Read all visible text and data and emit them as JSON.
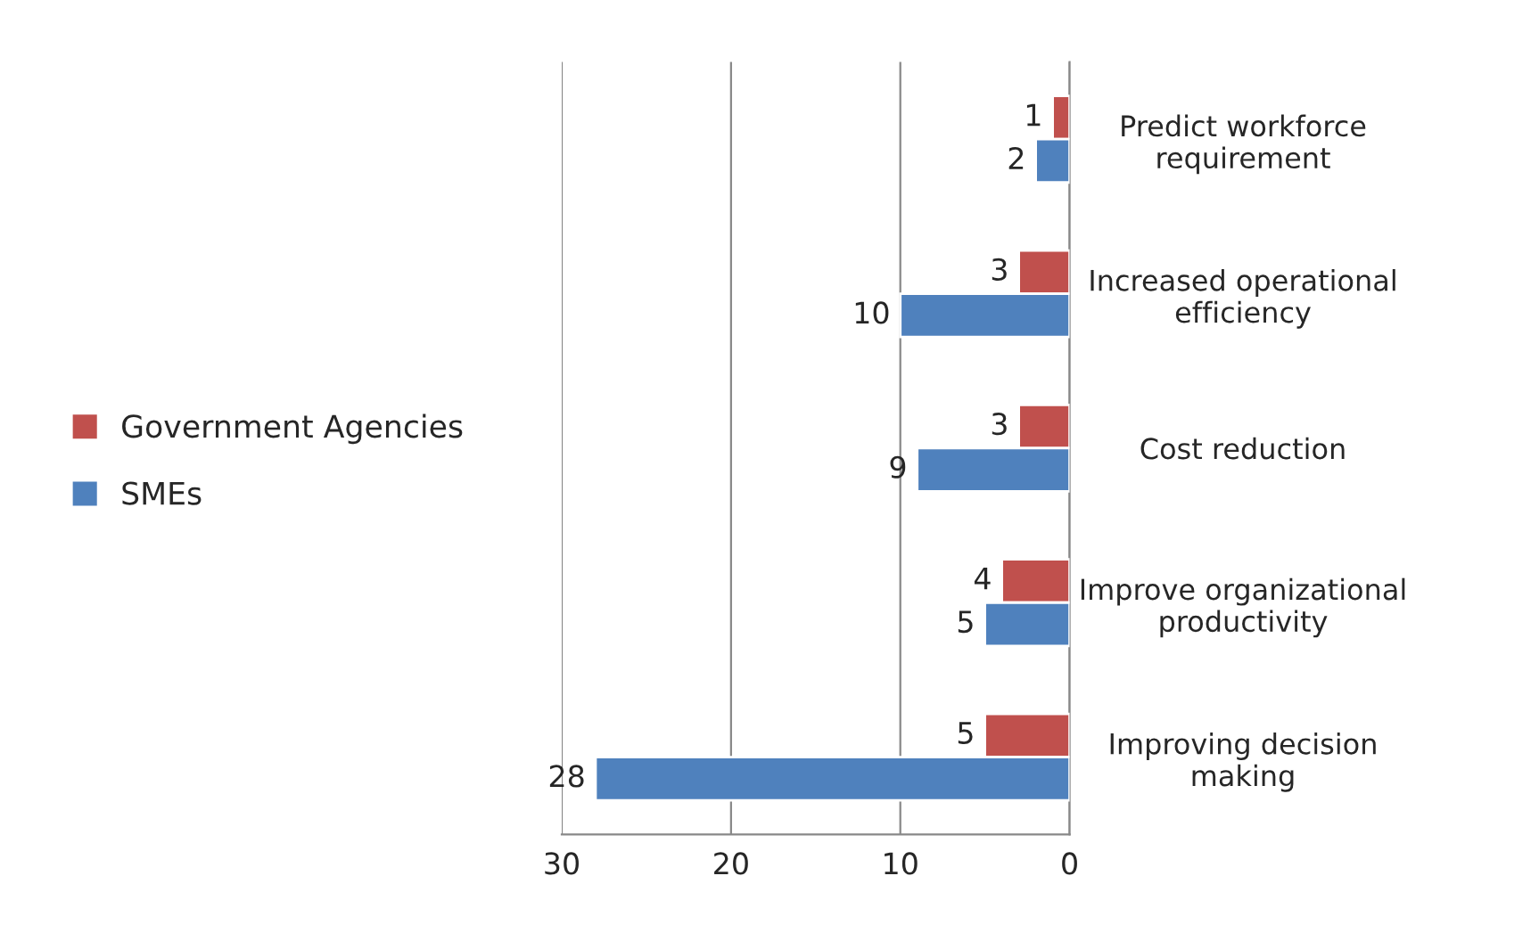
{
  "chart_data": {
    "type": "bar",
    "orientation": "horizontal",
    "categories": [
      "Predict workforce\nrequirement",
      "Increased operational\nefficiency",
      "Cost reduction",
      "Improve organizational\nproductivity",
      "Improving decision\nmaking"
    ],
    "series": [
      {
        "name": "Government Agencies",
        "color": "#c0504d",
        "values": [
          1,
          3,
          3,
          4,
          5
        ]
      },
      {
        "name": "SMEs",
        "color": "#4f81bd",
        "values": [
          2,
          10,
          9,
          5,
          28
        ]
      }
    ],
    "xlim": [
      30,
      0
    ],
    "xticks": [
      30,
      20,
      10,
      0
    ],
    "grid": "x",
    "legend": "left",
    "data_labels": true
  }
}
